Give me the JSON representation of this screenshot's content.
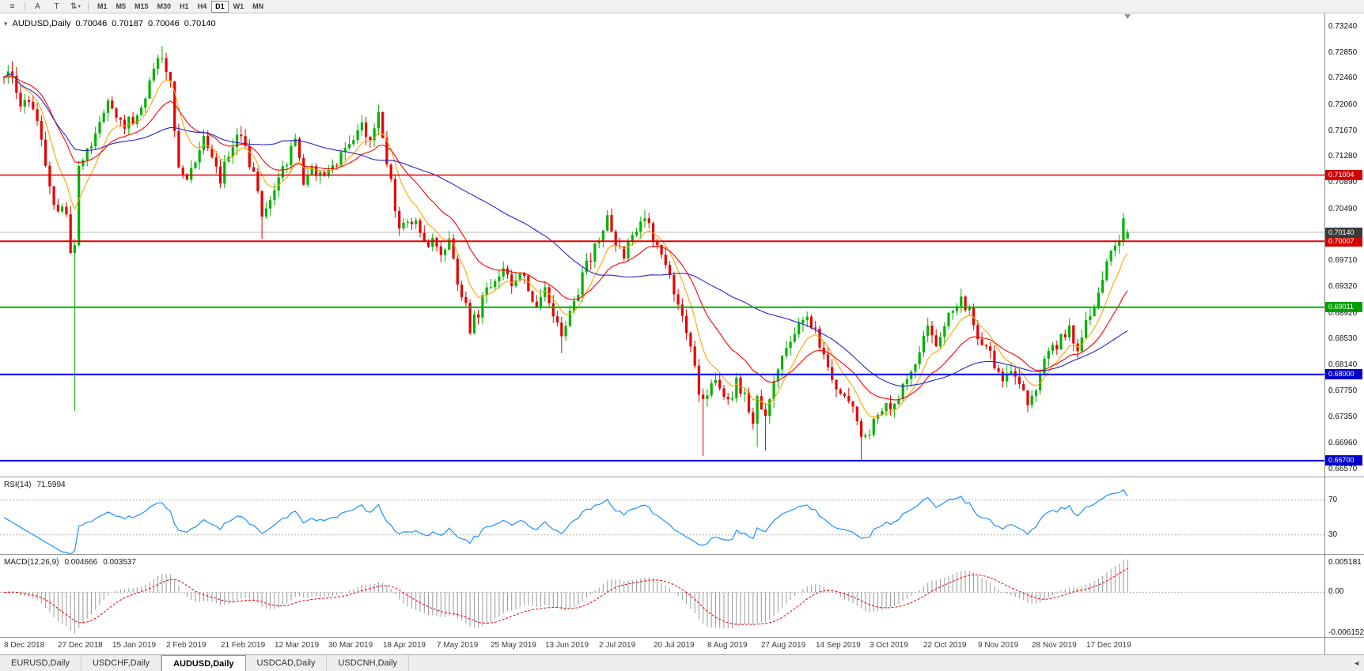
{
  "toolbar": {
    "menu_glyph": "≡",
    "a_button_label": "A",
    "t_button_label": "T",
    "arrange_glyph": "⇅",
    "caret_glyph": "▾",
    "timeframes": [
      "M1",
      "M5",
      "M15",
      "M30",
      "H1",
      "H4",
      "D1",
      "W1",
      "MN"
    ],
    "active_timeframe": "D1"
  },
  "chart": {
    "title_caret": "▾",
    "title": "AUDUSD,Daily",
    "ohlc": {
      "open": "0.70046",
      "high": "0.70187",
      "low": "0.70046",
      "close": "0.70140"
    },
    "price_axis_labels": [
      "0.73240",
      "0.72850",
      "0.72460",
      "0.72060",
      "0.71670",
      "0.71280",
      "0.70890",
      "0.70490",
      "0.70100",
      "0.69710",
      "0.69320",
      "0.68920",
      "0.68530",
      "0.68140",
      "0.67750",
      "0.67350",
      "0.66960",
      "0.66570"
    ],
    "current_price": {
      "label": "0.70140",
      "price": 0.7014,
      "badge_color": "#3a3a3a",
      "line_color": "#b8b8b8"
    },
    "levels": [
      {
        "label": "0.71004",
        "price": 0.71004,
        "line_color": "#e30000",
        "badge_color": "#d40000",
        "width": 1.6
      },
      {
        "label": "0.70007",
        "price": 0.70007,
        "line_color": "#e30000",
        "badge_color": "#d40000",
        "width": 2
      },
      {
        "label": "0.69011",
        "price": 0.69011,
        "line_color": "#00b400",
        "badge_color": "#00a000",
        "width": 2
      },
      {
        "label": "0.68000",
        "price": 0.68,
        "line_color": "#0505f0",
        "badge_color": "#0000cc",
        "width": 2
      },
      {
        "label": "0.66700",
        "price": 0.667,
        "line_color": "#0505f0",
        "badge_color": "#0000cc",
        "width": 2
      }
    ],
    "date_labels": [
      "8 Dec 2018",
      "27 Dec 2018",
      "15 Jan 2019",
      "2 Feb 2019",
      "21 Feb 2019",
      "12 Mar 2019",
      "30 Mar 2019",
      "18 Apr 2019",
      "7 May 2019",
      "25 May 2019",
      "13 Jun 2019",
      "2 Jul 2019",
      "20 Jul 2019",
      "8 Aug 2019",
      "27 Aug 2019",
      "14 Sep 2019",
      "3 Oct 2019",
      "22 Oct 2019",
      "9 Nov 2019",
      "28 Nov 2019",
      "17 Dec 2019"
    ]
  },
  "rsi": {
    "label": "RSI(14)",
    "value": "71.5994",
    "levels": [
      "70",
      "30"
    ],
    "line_color": "#1e90ff"
  },
  "macd": {
    "label": "MACD(12,26,9)",
    "value_main": "0.004666",
    "value_signal": "0.003537",
    "axis_top": "0.005181",
    "axis_zero": "0.00",
    "axis_bottom": "-0.006152",
    "histogram_color": "#9a9a9a",
    "signal_color": "#e30000"
  },
  "tabs": {
    "items": [
      "EURUSD,Daily",
      "USDCHF,Daily",
      "AUDUSD,Daily",
      "USDCAD,Daily",
      "USDCNH,Daily"
    ],
    "active": "AUDUSD,Daily",
    "scroll_left_glyph": "◄"
  },
  "chart_data": {
    "type": "candlestick",
    "symbol": "AUDUSD",
    "period": "Daily",
    "candle_count": 271,
    "bars_per_date_label": 13,
    "y_range": [
      0.6646,
      0.7344
    ],
    "up_color": "#00b200",
    "down_color": "#e60000",
    "moving_averages": [
      {
        "period": 8,
        "method": "ema",
        "color": "#ffa500"
      },
      {
        "period": 20,
        "method": "ema",
        "color": "#ff0000"
      },
      {
        "period": 50,
        "method": "sma",
        "color": "#2424cc"
      }
    ],
    "rsi_period": 14,
    "macd_params": [
      12,
      26,
      9
    ],
    "price_path_anchors": [
      [
        0,
        0.7238
      ],
      [
        2,
        0.7258
      ],
      [
        4,
        0.7198
      ],
      [
        6,
        0.7218
      ],
      [
        8,
        0.7178
      ],
      [
        10,
        0.7118
      ],
      [
        12,
        0.7048
      ],
      [
        15,
        0.7042
      ],
      [
        16,
        0.6988
      ],
      [
        17,
        0.7002
      ],
      [
        18,
        0.7112
      ],
      [
        20,
        0.7142
      ],
      [
        23,
        0.7182
      ],
      [
        25,
        0.7212
      ],
      [
        27,
        0.7196
      ],
      [
        29,
        0.7172
      ],
      [
        31,
        0.7186
      ],
      [
        33,
        0.7208
      ],
      [
        35,
        0.7242
      ],
      [
        38,
        0.7286
      ],
      [
        39,
        0.7252
      ],
      [
        40,
        0.7238
      ],
      [
        42,
        0.7112
      ],
      [
        44,
        0.7092
      ],
      [
        46,
        0.7128
      ],
      [
        48,
        0.7152
      ],
      [
        50,
        0.7136
      ],
      [
        52,
        0.7096
      ],
      [
        54,
        0.7132
      ],
      [
        56,
        0.7168
      ],
      [
        58,
        0.7148
      ],
      [
        60,
        0.7096
      ],
      [
        62,
        0.7042
      ],
      [
        64,
        0.7062
      ],
      [
        66,
        0.7092
      ],
      [
        68,
        0.7122
      ],
      [
        70,
        0.7148
      ],
      [
        72,
        0.7092
      ],
      [
        74,
        0.7118
      ],
      [
        76,
        0.7098
      ],
      [
        78,
        0.7108
      ],
      [
        81,
        0.7128
      ],
      [
        84,
        0.7152
      ],
      [
        86,
        0.7172
      ],
      [
        88,
        0.7148
      ],
      [
        90,
        0.7196
      ],
      [
        91,
        0.7148
      ],
      [
        93,
        0.7088
      ],
      [
        95,
        0.7018
      ],
      [
        97,
        0.7022
      ],
      [
        99,
        0.7038
      ],
      [
        101,
        0.7002
      ],
      [
        103,
        0.6996
      ],
      [
        105,
        0.6986
      ],
      [
        107,
        0.6996
      ],
      [
        109,
        0.6942
      ],
      [
        111,
        0.6898
      ],
      [
        112,
        0.6872
      ],
      [
        114,
        0.6892
      ],
      [
        116,
        0.6928
      ],
      [
        118,
        0.6932
      ],
      [
        120,
        0.6968
      ],
      [
        122,
        0.6938
      ],
      [
        124,
        0.6962
      ],
      [
        126,
        0.6928
      ],
      [
        128,
        0.6908
      ],
      [
        130,
        0.6928
      ],
      [
        132,
        0.6882
      ],
      [
        134,
        0.6858
      ],
      [
        136,
        0.6888
      ],
      [
        138,
        0.6928
      ],
      [
        140,
        0.6962
      ],
      [
        142,
        0.6992
      ],
      [
        145,
        0.7038
      ],
      [
        147,
        0.6998
      ],
      [
        149,
        0.6978
      ],
      [
        151,
        0.7012
      ],
      [
        153,
        0.7036
      ],
      [
        155,
        0.7026
      ],
      [
        157,
        0.6992
      ],
      [
        159,
        0.6958
      ],
      [
        161,
        0.6922
      ],
      [
        163,
        0.6882
      ],
      [
        165,
        0.6848
      ],
      [
        167,
        0.6768
      ],
      [
        168,
        0.6758
      ],
      [
        170,
        0.6792
      ],
      [
        172,
        0.6782
      ],
      [
        174,
        0.6758
      ],
      [
        176,
        0.6788
      ],
      [
        178,
        0.6768
      ],
      [
        180,
        0.6732
      ],
      [
        181,
        0.6772
      ],
      [
        183,
        0.6728
      ],
      [
        185,
        0.6792
      ],
      [
        187,
        0.6818
      ],
      [
        189,
        0.6858
      ],
      [
        191,
        0.6868
      ],
      [
        193,
        0.6878
      ],
      [
        195,
        0.6862
      ],
      [
        197,
        0.6832
      ],
      [
        199,
        0.6792
      ],
      [
        201,
        0.6778
      ],
      [
        203,
        0.6762
      ],
      [
        205,
        0.6728
      ],
      [
        206,
        0.6702
      ],
      [
        208,
        0.6712
      ],
      [
        210,
        0.6742
      ],
      [
        212,
        0.6762
      ],
      [
        214,
        0.675
      ],
      [
        216,
        0.6776
      ],
      [
        218,
        0.68
      ],
      [
        220,
        0.6842
      ],
      [
        222,
        0.6872
      ],
      [
        224,
        0.6852
      ],
      [
        226,
        0.6878
      ],
      [
        228,
        0.6892
      ],
      [
        230,
        0.6916
      ],
      [
        232,
        0.6892
      ],
      [
        234,
        0.6862
      ],
      [
        236,
        0.6842
      ],
      [
        238,
        0.6818
      ],
      [
        240,
        0.6788
      ],
      [
        242,
        0.6798
      ],
      [
        244,
        0.6778
      ],
      [
        246,
        0.6762
      ],
      [
        248,
        0.6772
      ],
      [
        250,
        0.6818
      ],
      [
        252,
        0.6842
      ],
      [
        254,
        0.6852
      ],
      [
        256,
        0.6868
      ],
      [
        258,
        0.6842
      ],
      [
        260,
        0.6878
      ],
      [
        262,
        0.6898
      ],
      [
        264,
        0.6942
      ],
      [
        266,
        0.6988
      ],
      [
        268,
        0.7008
      ],
      [
        269,
        0.7028
      ],
      [
        270,
        0.7014
      ]
    ],
    "spikes": [
      {
        "i": 2,
        "high": 0.7272
      },
      {
        "i": 17,
        "low": 0.6745
      },
      {
        "i": 38,
        "high": 0.7295
      },
      {
        "i": 62,
        "low": 0.7004
      },
      {
        "i": 90,
        "high": 0.7206
      },
      {
        "i": 112,
        "low": 0.6865
      },
      {
        "i": 134,
        "low": 0.6832
      },
      {
        "i": 145,
        "high": 0.7048
      },
      {
        "i": 168,
        "low": 0.6677
      },
      {
        "i": 181,
        "low": 0.669
      },
      {
        "i": 183,
        "low": 0.6685
      },
      {
        "i": 206,
        "low": 0.667
      },
      {
        "i": 230,
        "high": 0.693
      },
      {
        "i": 269,
        "high": 0.7032
      }
    ],
    "last_candle": {
      "open": 0.70046,
      "high": 0.70187,
      "low": 0.70046,
      "close": 0.7014
    }
  }
}
